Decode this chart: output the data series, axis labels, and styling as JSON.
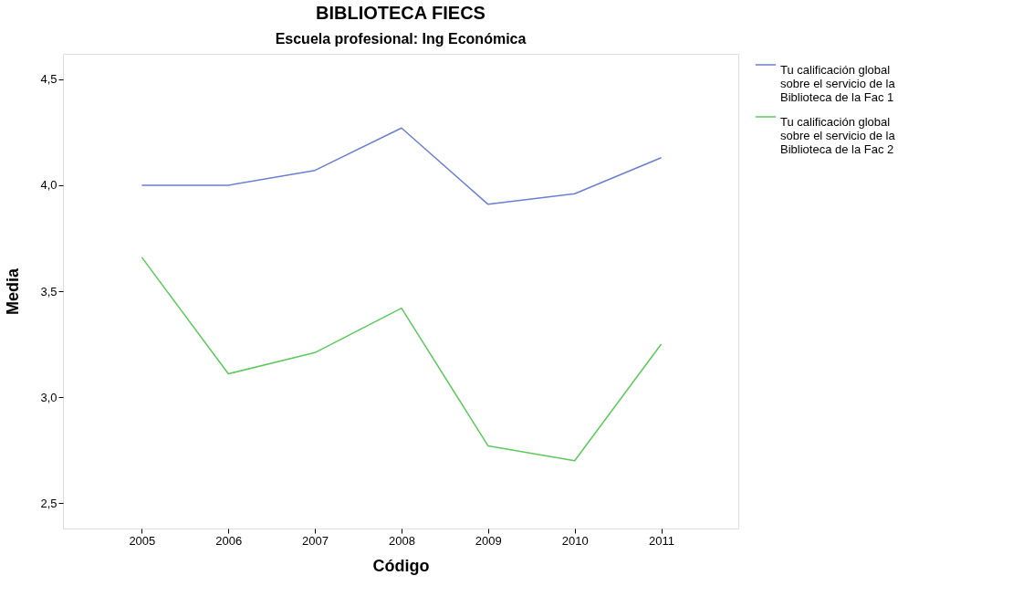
{
  "chart_data": {
    "type": "line",
    "title": "BIBLIOTECA FIECS",
    "subtitle": "Escuela profesional: Ing Económica",
    "xlabel": "Código",
    "ylabel": "Media",
    "categories": [
      "2005",
      "2006",
      "2007",
      "2008",
      "2009",
      "2010",
      "2011"
    ],
    "series": [
      {
        "name": "Tu  calificación global sobre el servicio de la Biblioteca de la Fac 1",
        "color": "#6b7fd0",
        "values": [
          4.0,
          4.0,
          4.07,
          4.27,
          3.91,
          3.96,
          4.13
        ]
      },
      {
        "name": "Tu  calificación global sobre el servicio de la Biblioteca de la Fac 2",
        "color": "#5cc95c",
        "values": [
          3.66,
          3.11,
          3.21,
          3.42,
          2.77,
          2.7,
          3.25
        ]
      }
    ],
    "ylim": [
      2.38,
      4.62
    ],
    "yticks": [
      {
        "value": 2.5,
        "label": "2,5"
      },
      {
        "value": 3.0,
        "label": "3,0"
      },
      {
        "value": 3.5,
        "label": "3,5"
      },
      {
        "value": 4.0,
        "label": "4,0"
      },
      {
        "value": 4.5,
        "label": "4,5"
      }
    ],
    "grid": false,
    "legend": "top right",
    "marker": "none",
    "line_style": "solid"
  }
}
